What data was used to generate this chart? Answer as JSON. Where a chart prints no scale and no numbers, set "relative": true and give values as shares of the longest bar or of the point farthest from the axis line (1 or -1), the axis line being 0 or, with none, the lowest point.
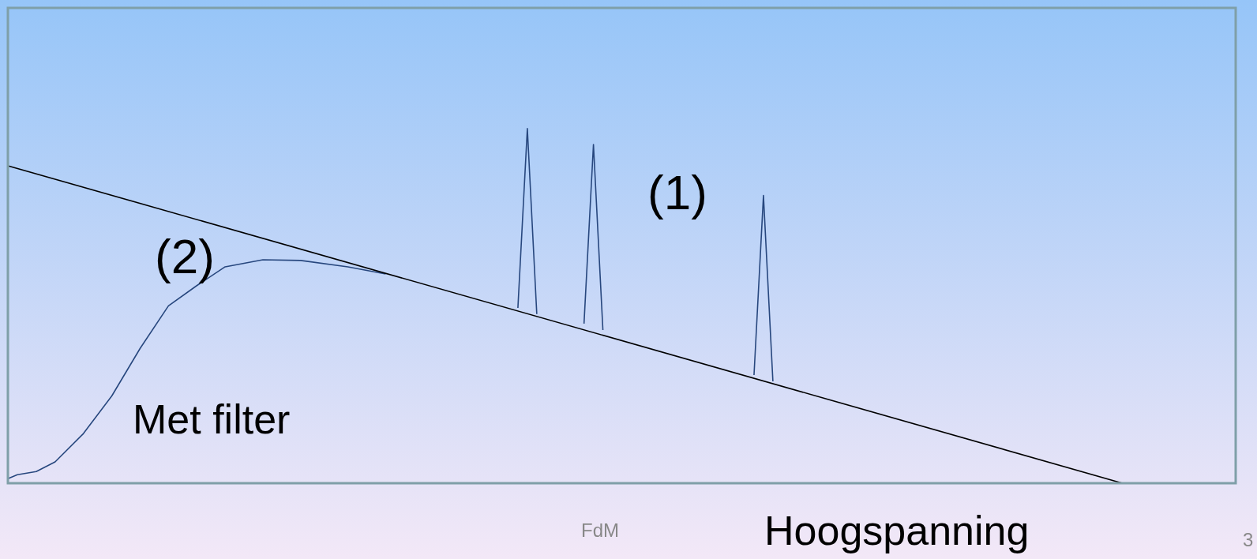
{
  "chart_data": {
    "type": "line",
    "relative": true,
    "xlabel": "Hoogspanning",
    "tick_labels": false,
    "marker": "none",
    "line_style": "solid",
    "categories": [
      null,
      null,
      null,
      null,
      null,
      null,
      null,
      null,
      null,
      null,
      null,
      null,
      null,
      null,
      null,
      null,
      null,
      null,
      null,
      null,
      null,
      null,
      null,
      null,
      null,
      null,
      null,
      null,
      null,
      null,
      null,
      null,
      null,
      null,
      null,
      null,
      null,
      null,
      null,
      null,
      null,
      null,
      null,
      null,
      null,
      null,
      null,
      null,
      null,
      null,
      null,
      null,
      null,
      null,
      null,
      null,
      null,
      null,
      null,
      null,
      null,
      null,
      null,
      null,
      null,
      null,
      null,
      null,
      null,
      null,
      null,
      null,
      null,
      null,
      null,
      null,
      null,
      null,
      null,
      null,
      null,
      null,
      null,
      null,
      null,
      null,
      null,
      null,
      null,
      null,
      null,
      null,
      null,
      null,
      null,
      null,
      null,
      null,
      null,
      null,
      null,
      null,
      null,
      null,
      null,
      null,
      null,
      null,
      null,
      null,
      null,
      null,
      null,
      null,
      null,
      null,
      null,
      null,
      null,
      null,
      null,
      null,
      null,
      null,
      null,
      null,
      null,
      null,
      null,
      null,
      null
    ],
    "series": [
      {
        "color": "#000000",
        "values": [
          0.895,
          null,
          null,
          null,
          null,
          null,
          null,
          null,
          null,
          null,
          null,
          null,
          null,
          null,
          null,
          null,
          null,
          null,
          null,
          null,
          null,
          null,
          null,
          null,
          null,
          null,
          null,
          null,
          null,
          null,
          null,
          null,
          null,
          null,
          null,
          null,
          null,
          null,
          null,
          null,
          null,
          null,
          null,
          null,
          null,
          null,
          null,
          null,
          null,
          null,
          null,
          null,
          null,
          null,
          null,
          null,
          null,
          null,
          null,
          null,
          null,
          null,
          null,
          null,
          null,
          null,
          null,
          null,
          null,
          null,
          null,
          null,
          null,
          null,
          null,
          null,
          null,
          null,
          null,
          null,
          null,
          null,
          null,
          null,
          null,
          null,
          null,
          null,
          null,
          null,
          null,
          null,
          null,
          null,
          null,
          null,
          null,
          null,
          null,
          null,
          null,
          null,
          null,
          null,
          null,
          null,
          null,
          null,
          null,
          null,
          null,
          null,
          null,
          null,
          null,
          null,
          null,
          null,
          0,
          null,
          null,
          null,
          null,
          null,
          null,
          null,
          null,
          null,
          null,
          null,
          null
        ]
      },
      {
        "color": "#27477e",
        "values": [
          null,
          null,
          null,
          null,
          null,
          null,
          null,
          null,
          null,
          null,
          null,
          null,
          null,
          null,
          null,
          null,
          null,
          null,
          null,
          null,
          null,
          null,
          null,
          null,
          null,
          null,
          null,
          null,
          null,
          null,
          null,
          null,
          null,
          null,
          null,
          null,
          null,
          null,
          null,
          null,
          null,
          null,
          null,
          null,
          null,
          null,
          null,
          null,
          null,
          null,
          null,
          null,
          null,
          null,
          0.494,
          1,
          0.477,
          null,
          null,
          null,
          null,
          null,
          null,
          null,
          null,
          null,
          null,
          null,
          null,
          null,
          null,
          null,
          null,
          null,
          null,
          null,
          null,
          null,
          null,
          null,
          null,
          null,
          null,
          null,
          null,
          null,
          null,
          null,
          null,
          null,
          null,
          null,
          null,
          null,
          null,
          null,
          null,
          null,
          null,
          null,
          null,
          null,
          null,
          null,
          null,
          null,
          null,
          null,
          null,
          null,
          null,
          null,
          null,
          null,
          null,
          null,
          null,
          null,
          null,
          null,
          null,
          null,
          null,
          null,
          null,
          null,
          null,
          null,
          null,
          null,
          null
        ]
      },
      {
        "color": "#27477e",
        "values": [
          null,
          null,
          null,
          null,
          null,
          null,
          null,
          null,
          null,
          null,
          null,
          null,
          null,
          null,
          null,
          null,
          null,
          null,
          null,
          null,
          null,
          null,
          null,
          null,
          null,
          null,
          null,
          null,
          null,
          null,
          null,
          null,
          null,
          null,
          null,
          null,
          null,
          null,
          null,
          null,
          null,
          null,
          null,
          null,
          null,
          null,
          null,
          null,
          null,
          null,
          null,
          null,
          null,
          null,
          null,
          null,
          null,
          null,
          null,
          null,
          null,
          0.45,
          0.955,
          0.432,
          null,
          null,
          null,
          null,
          null,
          null,
          null,
          null,
          null,
          null,
          null,
          null,
          null,
          null,
          null,
          null,
          null,
          null,
          null,
          null,
          null,
          null,
          null,
          null,
          null,
          null,
          null,
          null,
          null,
          null,
          null,
          null,
          null,
          null,
          null,
          null,
          null,
          null,
          null,
          null,
          null,
          null,
          null,
          null,
          null,
          null,
          null,
          null,
          null,
          null,
          null,
          null,
          null,
          null,
          null,
          null,
          null,
          null,
          null,
          null,
          null,
          null,
          null,
          null,
          null,
          null,
          null
        ]
      },
      {
        "color": "#27477e",
        "values": [
          null,
          null,
          null,
          null,
          null,
          null,
          null,
          null,
          null,
          null,
          null,
          null,
          null,
          null,
          null,
          null,
          null,
          null,
          null,
          null,
          null,
          null,
          null,
          null,
          null,
          null,
          null,
          null,
          null,
          null,
          null,
          null,
          null,
          null,
          null,
          null,
          null,
          null,
          null,
          null,
          null,
          null,
          null,
          null,
          null,
          null,
          null,
          null,
          null,
          null,
          null,
          null,
          null,
          null,
          null,
          null,
          null,
          null,
          null,
          null,
          null,
          null,
          null,
          null,
          null,
          null,
          null,
          null,
          null,
          null,
          null,
          null,
          null,
          null,
          null,
          null,
          null,
          null,
          null,
          0.305,
          0.811,
          0.287,
          null,
          null,
          null,
          null,
          null,
          null,
          null,
          null,
          null,
          null,
          null,
          null,
          null,
          null,
          null,
          null,
          null,
          null,
          null,
          null,
          null,
          null,
          null,
          null,
          null,
          null,
          null,
          null,
          null,
          null,
          null,
          null,
          null,
          null,
          null,
          null,
          null,
          null,
          null,
          null,
          null,
          null,
          null,
          null,
          null,
          null,
          null,
          null,
          null
        ]
      },
      {
        "color": "#27477e",
        "values": [
          0.013,
          0.024,
          null,
          0.033,
          null,
          0.06,
          null,
          null,
          0.14,
          null,
          null,
          0.246,
          null,
          null,
          0.38,
          null,
          null,
          0.5,
          null,
          null,
          0.557,
          null,
          null,
          0.61,
          null,
          null,
          null,
          0.63,
          null,
          null,
          null,
          0.628,
          null,
          null,
          null,
          null,
          0.61,
          null,
          null,
          null,
          0.59,
          null,
          null,
          null,
          null,
          null,
          null,
          null,
          null,
          null,
          null,
          null,
          null,
          null,
          null,
          null,
          null,
          null,
          null,
          null,
          null,
          null,
          null,
          null,
          null,
          null,
          null,
          null,
          null,
          null,
          null,
          null,
          null,
          null,
          null,
          null,
          null,
          null,
          null,
          null,
          null,
          null,
          null,
          null,
          null,
          null,
          null,
          null,
          null,
          null,
          null,
          null,
          null,
          null,
          null,
          null,
          null,
          null,
          null,
          null,
          null,
          null,
          null,
          null,
          null,
          null,
          null,
          null,
          null,
          null,
          null,
          null,
          null,
          null,
          null,
          null,
          null,
          null,
          null,
          null,
          null,
          null,
          null,
          null,
          null,
          null,
          null,
          null,
          null,
          null,
          null
        ]
      }
    ],
    "annotations": [
      "(1)",
      "(2)",
      "Met filter",
      "FdM",
      "3"
    ]
  }
}
